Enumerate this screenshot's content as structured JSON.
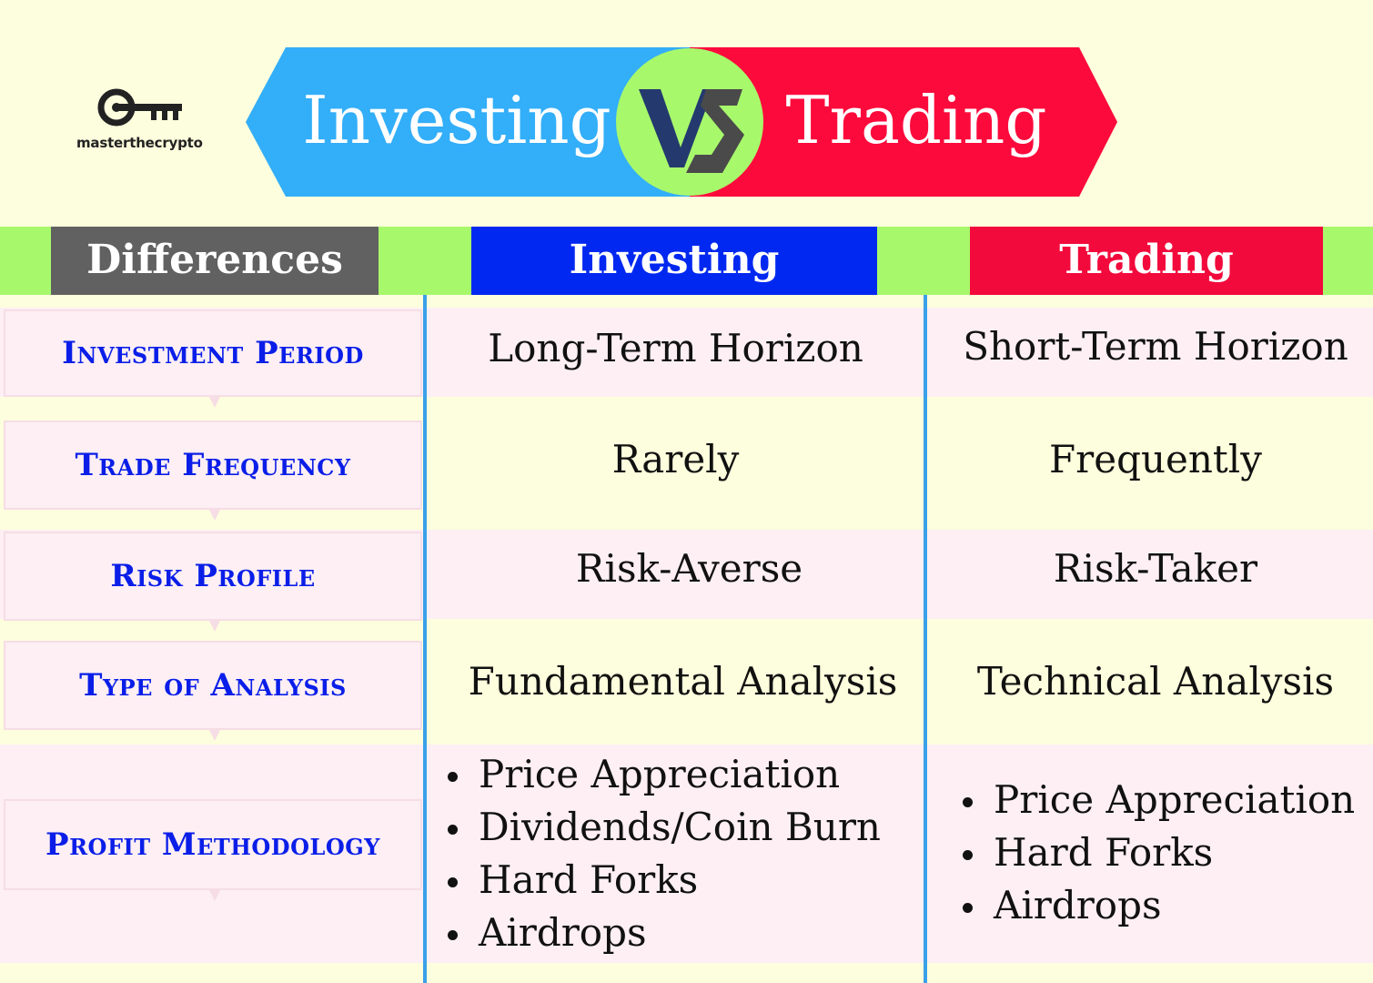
{
  "logo": {
    "text": "masterthecrypto",
    "icon": "key-icon"
  },
  "banner": {
    "left": "Investing",
    "right": "Trading",
    "badge": "VS",
    "left_color": "#33aef8",
    "right_color": "#fc0a3c",
    "badge_color": "#a8f86c"
  },
  "headers": {
    "differences": "Differences",
    "investing": "Investing",
    "trading": "Trading"
  },
  "rows": [
    {
      "label": "Investment Period",
      "investing": "Long-Term Horizon",
      "trading": "Short-Term Horizon"
    },
    {
      "label": "Trade Frequency",
      "investing": "Rarely",
      "trading": "Frequently"
    },
    {
      "label": "Risk Profile",
      "investing": "Risk-Averse",
      "trading": "Risk-Taker"
    },
    {
      "label": "Type of Analysis",
      "investing": "Fundamental Analysis",
      "trading": "Technical Analysis"
    }
  ],
  "profit": {
    "label": "Profit Methodology",
    "investing": [
      "Price Appreciation",
      "Dividends/Coin Burn",
      "Hard Forks",
      "Airdrops"
    ],
    "trading": [
      "Price Appreciation",
      "Hard Forks",
      "Airdrops"
    ]
  },
  "colors": {
    "background": "#fdfedd",
    "row_pink": "#fdeff4",
    "label_text": "#0a1ee8",
    "divider": "#3aa0e8"
  }
}
